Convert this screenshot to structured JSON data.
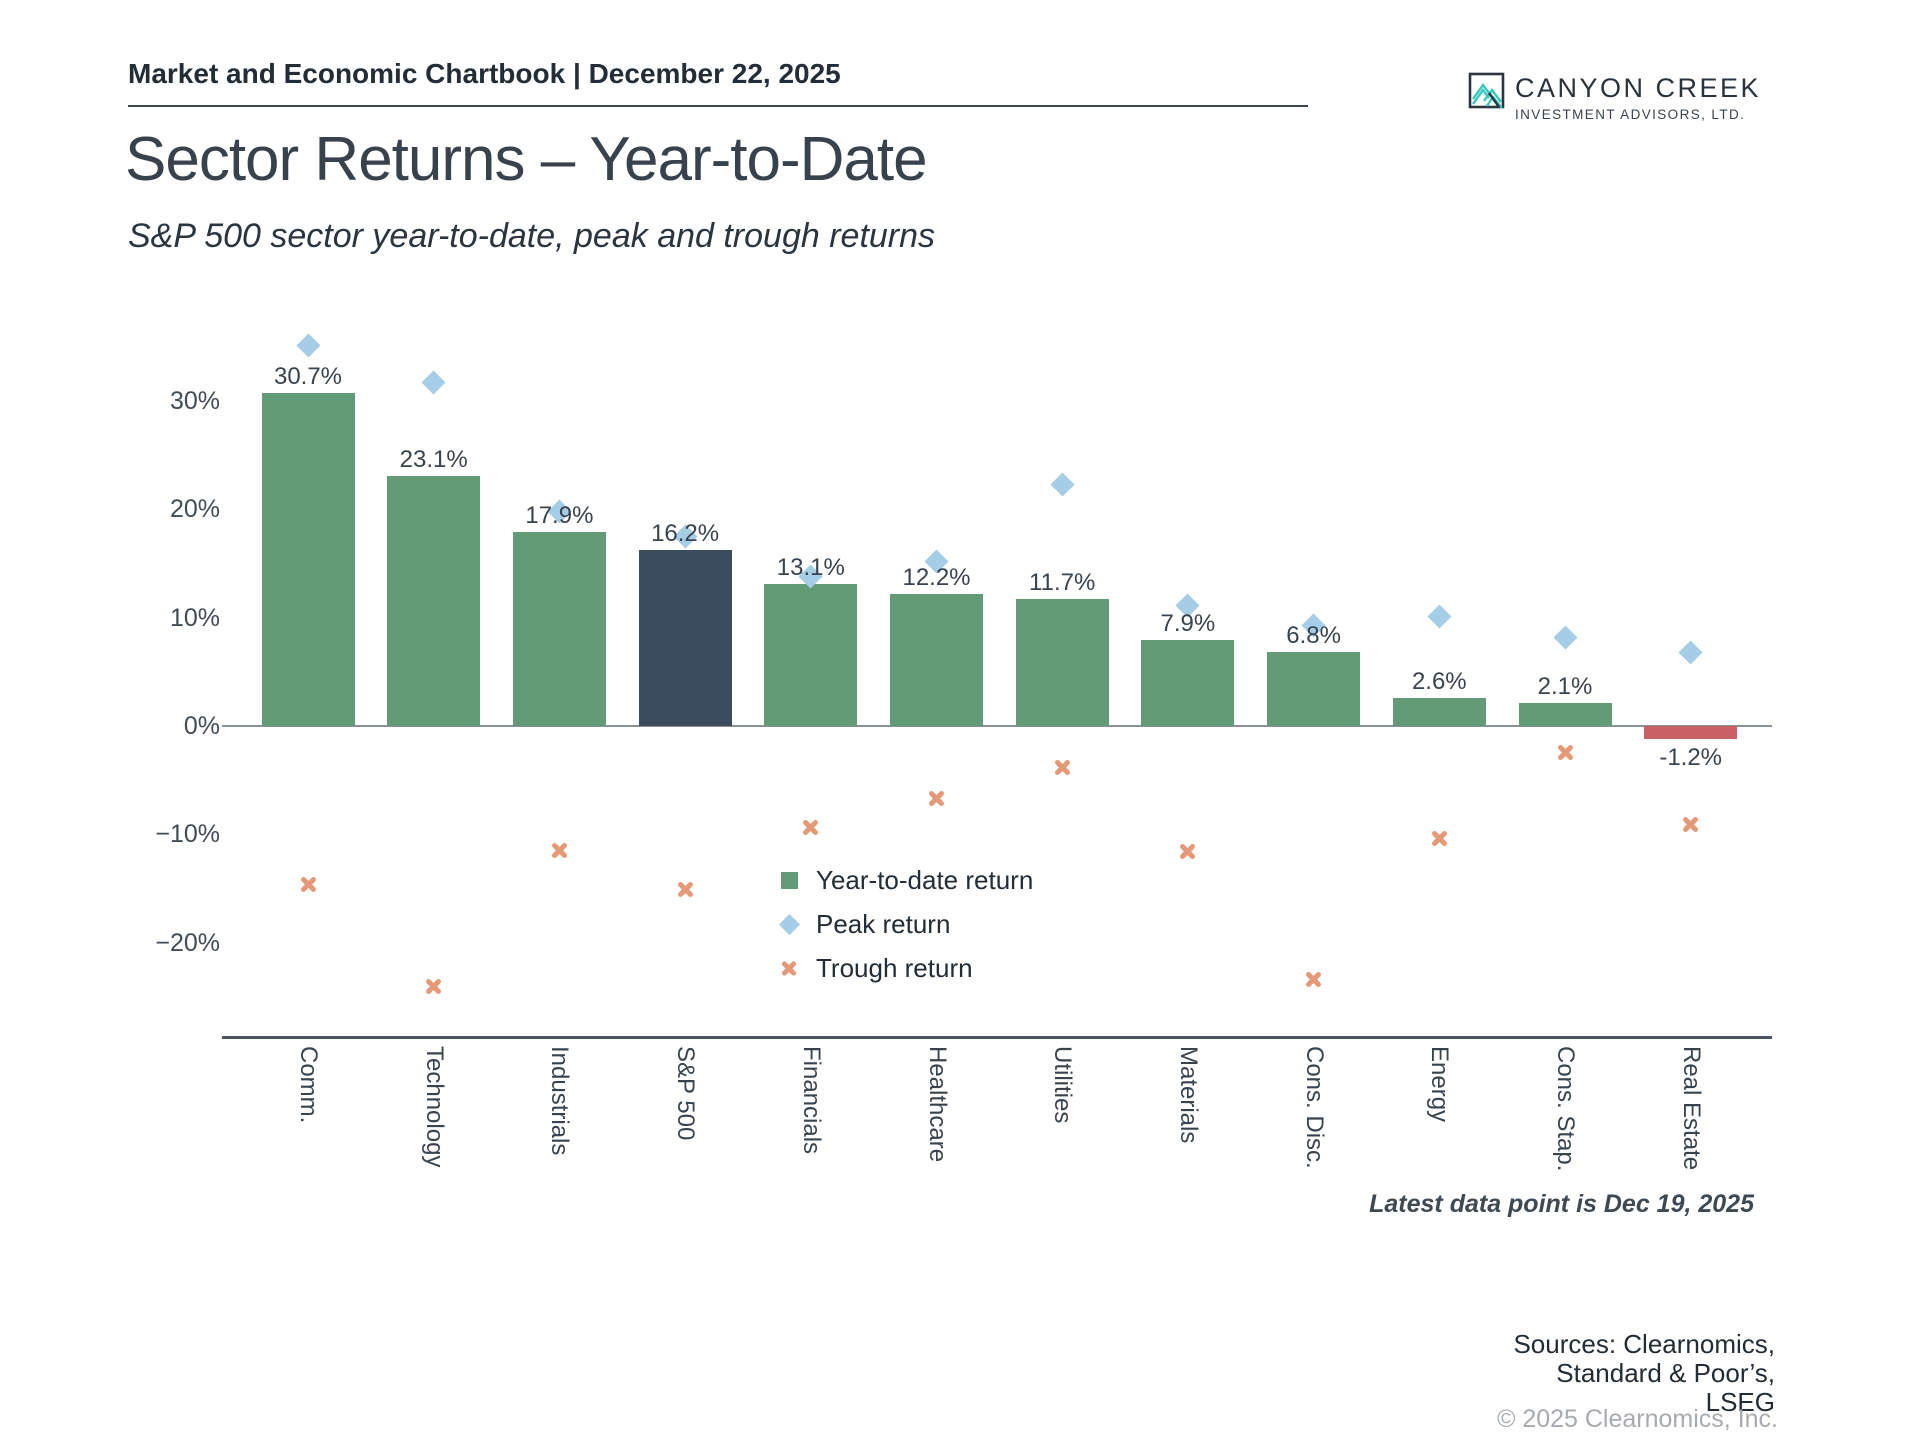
{
  "header": {
    "title": "Market and Economic Chartbook | December 22, 2025"
  },
  "logo": {
    "name": "CANYON CREEK",
    "subtitle": "INVESTMENT ADVISORS, LTD."
  },
  "title": "Sector Returns – Year-to-Date",
  "subtitle": "S&P 500 sector year-to-date, peak and trough returns",
  "legend": {
    "items": [
      {
        "label": "Year-to-date return"
      },
      {
        "label": "Peak return"
      },
      {
        "label": "Trough return"
      }
    ]
  },
  "footnotes": {
    "latest": "Latest data point is Dec 19, 2025",
    "copyright": "© 2025 Clearnomics, Inc."
  },
  "sources": {
    "lines": [
      "Sources: Clearnomics,",
      "Standard & Poor’s,",
      "LSEG"
    ]
  },
  "colors": {
    "bar": "#639b76",
    "benchmark_bar": "#3b4c5e",
    "negative_bar": "#c96065",
    "peak_marker": "#a6cde6",
    "trough_marker": "#e59977",
    "logo_teal": "#38c9c0",
    "ink": "#39434e",
    "axis_line": "#4a5560",
    "baseline": "#8a9199",
    "muted": "#a7abaf"
  },
  "chart_data": {
    "type": "bar",
    "title": "Sector Returns – Year-to-Date",
    "subtitle": "S&P 500 sector year-to-date, peak and trough returns",
    "categories": [
      "Comm.",
      "Technology",
      "Industrials",
      "S&P 500",
      "Financials",
      "Healthcare",
      "Utilities",
      "Materials",
      "Cons. Disc.",
      "Energy",
      "Cons. Stap.",
      "Real Estate"
    ],
    "series": [
      {
        "name": "Year-to-date return",
        "type": "bar",
        "values": [
          30.7,
          23.1,
          17.9,
          16.2,
          13.1,
          12.2,
          11.7,
          7.9,
          6.8,
          2.6,
          2.1,
          -1.2
        ]
      },
      {
        "name": "Peak return",
        "type": "scatter-diamond",
        "values": [
          35.1,
          31.7,
          19.8,
          17.5,
          13.8,
          15.2,
          22.3,
          11.1,
          9.3,
          10.1,
          8.2,
          6.8
        ]
      },
      {
        "name": "Trough return",
        "type": "scatter-x",
        "values": [
          -14.6,
          -24.0,
          -11.5,
          -15.1,
          -9.4,
          -6.7,
          -3.8,
          -11.6,
          -23.4,
          -10.4,
          -2.4,
          -9.1
        ]
      }
    ],
    "value_labels": [
      "30.7%",
      "23.1%",
      "17.9%",
      "16.2%",
      "13.1%",
      "12.2%",
      "11.7%",
      "7.9%",
      "6.8%",
      "2.6%",
      "2.1%",
      "-1.2%"
    ],
    "benchmark_index": 3,
    "yticks": [
      {
        "value": 30,
        "label": "30%"
      },
      {
        "value": 20,
        "label": "20%"
      },
      {
        "value": 10,
        "label": "10%"
      },
      {
        "value": 0,
        "label": "0%"
      },
      {
        "value": -10,
        "label": "−10%"
      },
      {
        "value": -20,
        "label": "−20%"
      }
    ],
    "ylim": [
      -28.5,
      37
    ],
    "grid": false,
    "legend_position": "inside-plot-center-left"
  }
}
